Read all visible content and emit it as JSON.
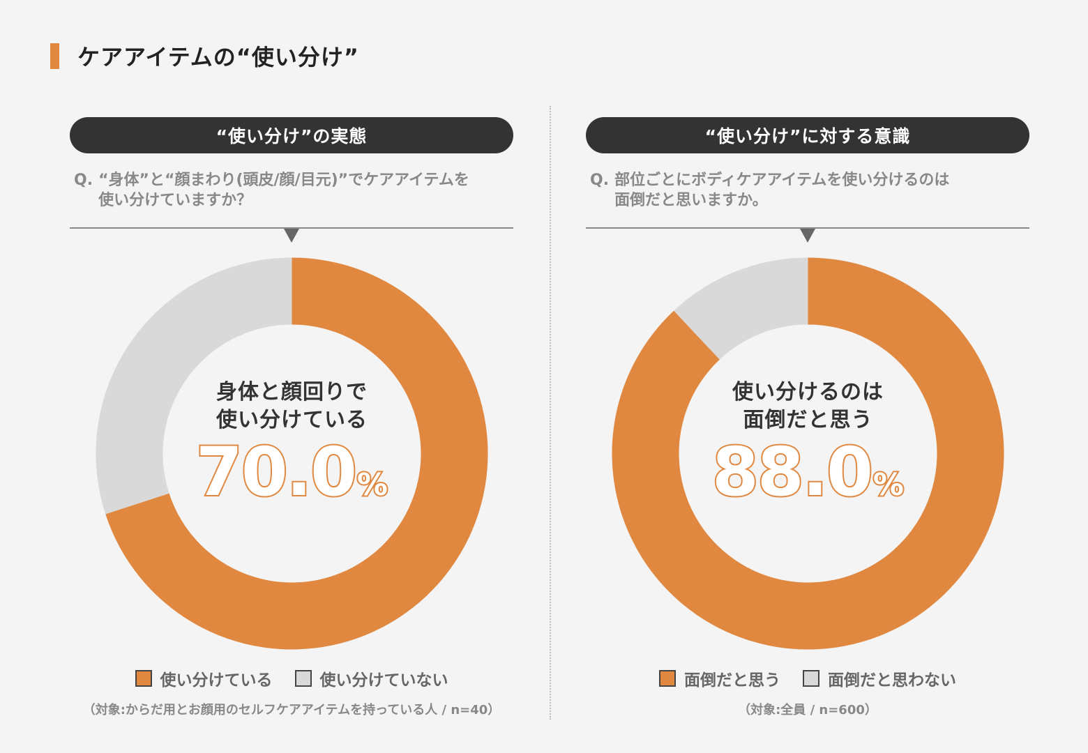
{
  "title": "ケアアイテムの“使い分け”",
  "colors": {
    "accent": "#e08840",
    "rest": "#d9d9d9",
    "pill": "#333333"
  },
  "panels": [
    {
      "heading": "“使い分け”の実態",
      "question_mark": "Q.",
      "question_line1": "“身体”と“顔まわり(頭皮/顔/目元)”でケアアイテムを",
      "question_line2": "使い分けていますか？",
      "center_line1": "身体と顔回りで",
      "center_line2": "使い分けている",
      "percent_value": "70.0",
      "percent_unit": "%",
      "legend_a": "使い分けている",
      "legend_b": "使い分けていない",
      "note": "（対象:からだ用とお顔用のセルフケアアイテムを持っている人 / n=40）"
    },
    {
      "heading": "“使い分け”に対する意識",
      "question_mark": "Q.",
      "question_line1": "部位ごとにボディケアアイテムを使い分けるのは",
      "question_line2": "面倒だと思いますか。",
      "center_line1": "使い分けるのは",
      "center_line2": "面倒だと思う",
      "percent_value": "88.0",
      "percent_unit": "%",
      "legend_a": "面倒だと思う",
      "legend_b": "面倒だと思わない",
      "note": "（対象:全員 / n=600）"
    }
  ],
  "chart_data": [
    {
      "type": "pie",
      "title": "“使い分け”の実態",
      "categories": [
        "使い分けている",
        "使い分けていない"
      ],
      "values": [
        70.0,
        30.0
      ],
      "unit": "%",
      "n": 40
    },
    {
      "type": "pie",
      "title": "“使い分け”に対する意識",
      "categories": [
        "面倒だと思う",
        "面倒だと思わない"
      ],
      "values": [
        88.0,
        12.0
      ],
      "unit": "%",
      "n": 600
    }
  ]
}
